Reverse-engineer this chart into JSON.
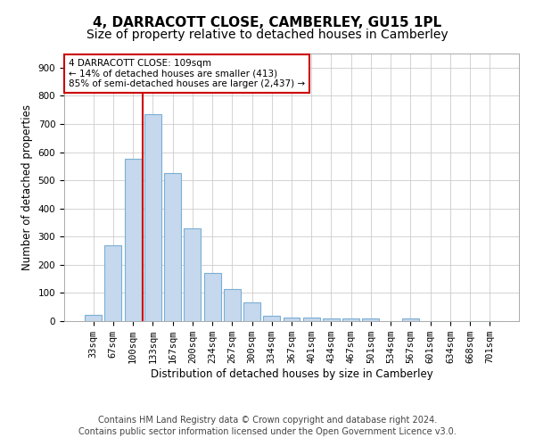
{
  "title": "4, DARRACOTT CLOSE, CAMBERLEY, GU15 1PL",
  "subtitle": "Size of property relative to detached houses in Camberley",
  "xlabel": "Distribution of detached houses by size in Camberley",
  "ylabel": "Number of detached properties",
  "categories": [
    "33sqm",
    "67sqm",
    "100sqm",
    "133sqm",
    "167sqm",
    "200sqm",
    "234sqm",
    "267sqm",
    "300sqm",
    "334sqm",
    "367sqm",
    "401sqm",
    "434sqm",
    "467sqm",
    "501sqm",
    "534sqm",
    "567sqm",
    "601sqm",
    "634sqm",
    "668sqm",
    "701sqm"
  ],
  "values": [
    22,
    270,
    575,
    735,
    525,
    330,
    170,
    115,
    65,
    20,
    13,
    13,
    10,
    8,
    8,
    0,
    8,
    0,
    0,
    0,
    0
  ],
  "bar_color": "#c5d8ed",
  "bar_edge_color": "#7bafd4",
  "vline_color": "#cc0000",
  "annotation_text": "4 DARRACOTT CLOSE: 109sqm\n← 14% of detached houses are smaller (413)\n85% of semi-detached houses are larger (2,437) →",
  "annotation_box_color": "#ffffff",
  "annotation_box_edge": "#cc0000",
  "ylim": [
    0,
    950
  ],
  "yticks": [
    0,
    100,
    200,
    300,
    400,
    500,
    600,
    700,
    800,
    900
  ],
  "footer1": "Contains HM Land Registry data © Crown copyright and database right 2024.",
  "footer2": "Contains public sector information licensed under the Open Government Licence v3.0.",
  "title_fontsize": 11,
  "subtitle_fontsize": 10,
  "label_fontsize": 8.5,
  "tick_fontsize": 7.5,
  "annotation_fontsize": 7.5,
  "footer_fontsize": 7,
  "background_color": "#ffffff",
  "grid_color": "#cccccc"
}
